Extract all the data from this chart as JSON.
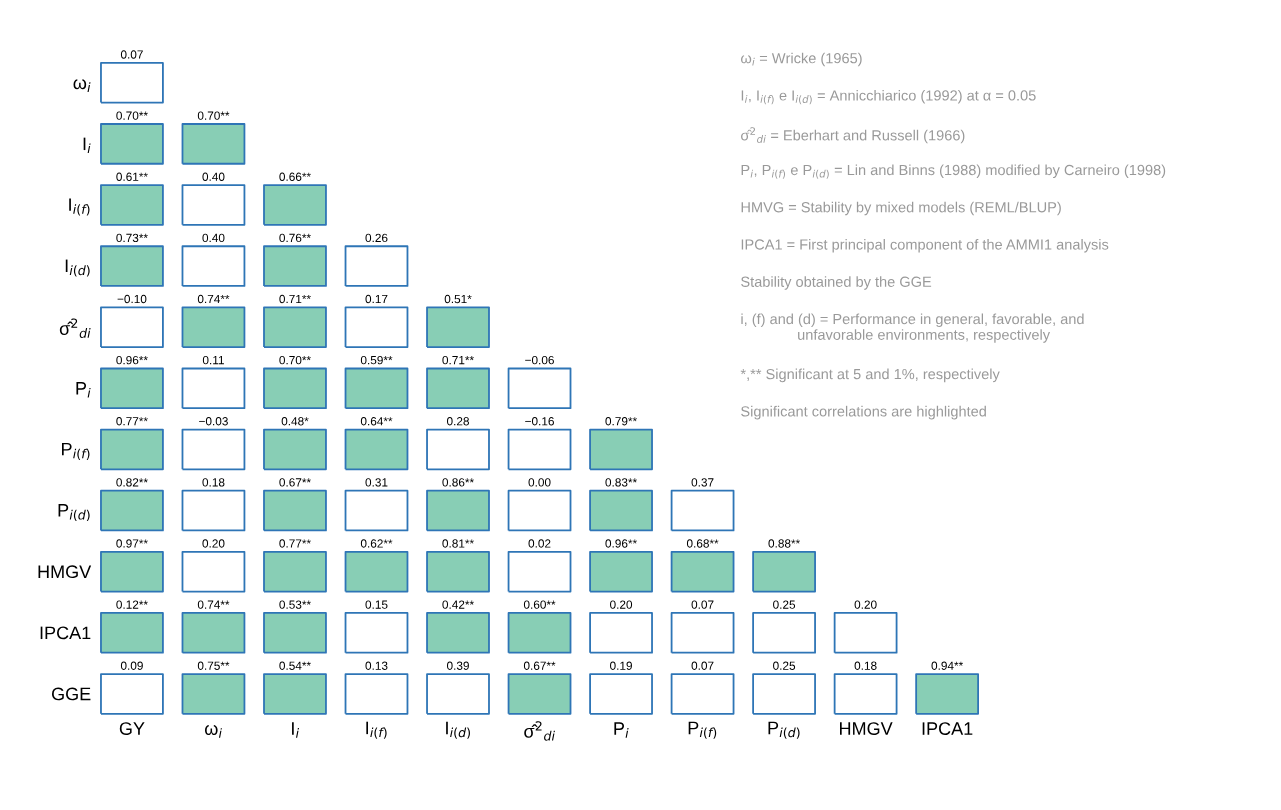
{
  "chart_data": {
    "type": "heatmap",
    "categories": [
      "GY",
      "ω$_{i}$",
      "I$_{i}$",
      "I$_{i(f)}$",
      "I$_{i(d)}$",
      "σ̂$^{2}$$_{di}$",
      "P$_{i}$",
      "P$_{i(f)}$",
      "P$_{i(d)}$",
      "HMGV",
      "IPCA1"
    ],
    "y_categories": [
      "ω$_{i}$",
      "I$_{i}$",
      "I$_{i(f)}$",
      "I$_{i(d)}$",
      "σ̂$^{2}$$_{di}$",
      "P$_{i}$",
      "P$_{i(f)}$",
      "P$_{i(d)}$",
      "HMGV",
      "IPCA1",
      "GGE"
    ],
    "cells": [
      [
        0.07,
        null,
        null,
        null,
        null,
        null,
        null,
        null,
        null,
        null,
        null
      ],
      [
        0.7,
        0.7,
        null,
        null,
        null,
        null,
        null,
        null,
        null,
        null,
        null
      ],
      [
        0.61,
        0.4,
        0.66,
        null,
        null,
        null,
        null,
        null,
        null,
        null,
        null
      ],
      [
        0.73,
        0.4,
        0.76,
        0.26,
        null,
        null,
        null,
        null,
        null,
        null,
        null
      ],
      [
        -0.1,
        0.74,
        0.71,
        0.17,
        0.51,
        null,
        null,
        null,
        null,
        null,
        null
      ],
      [
        0.96,
        0.11,
        0.7,
        0.59,
        0.71,
        -0.06,
        null,
        null,
        null,
        null,
        null
      ],
      [
        0.77,
        -0.03,
        0.48,
        0.64,
        0.28,
        -0.16,
        0.79,
        null,
        null,
        null,
        null
      ],
      [
        0.82,
        0.18,
        0.67,
        0.31,
        0.86,
        0.0,
        0.83,
        0.37,
        null,
        null,
        null
      ],
      [
        0.97,
        0.2,
        0.77,
        0.62,
        0.81,
        0.02,
        0.96,
        0.68,
        0.88,
        null,
        null
      ],
      [
        0.12,
        0.74,
        0.53,
        0.15,
        0.42,
        0.6,
        0.2,
        0.07,
        0.25,
        0.2,
        null
      ],
      [
        0.09,
        0.75,
        0.54,
        0.13,
        0.39,
        0.67,
        0.19,
        0.07,
        0.25,
        0.18,
        0.94
      ]
    ],
    "cell_labels": [
      [
        "0.07",
        null,
        null,
        null,
        null,
        null,
        null,
        null,
        null,
        null,
        null
      ],
      [
        "0.70**",
        "0.70**",
        null,
        null,
        null,
        null,
        null,
        null,
        null,
        null,
        null
      ],
      [
        "0.61**",
        "0.40",
        "0.66**",
        null,
        null,
        null,
        null,
        null,
        null,
        null,
        null
      ],
      [
        "0.73**",
        "0.40",
        "0.76**",
        "0.26",
        null,
        null,
        null,
        null,
        null,
        null,
        null
      ],
      [
        "−0.10",
        "0.74**",
        "0.71**",
        "0.17",
        "0.51*",
        null,
        null,
        null,
        null,
        null,
        null
      ],
      [
        "0.96**",
        "0.11",
        "0.70**",
        "0.59**",
        "0.71**",
        "−0.06",
        null,
        null,
        null,
        null,
        null
      ],
      [
        "0.77**",
        "−0.03",
        "0.48*",
        "0.64**",
        "0.28",
        "−0.16",
        "0.79**",
        null,
        null,
        null,
        null
      ],
      [
        "0.82**",
        "0.18",
        "0.67**",
        "0.31",
        "0.86**",
        "0.00",
        "0.83**",
        "0.37",
        null,
        null,
        null
      ],
      [
        "0.97**",
        "0.20",
        "0.77**",
        "0.62**",
        "0.81**",
        "0.02",
        "0.96**",
        "0.68**",
        "0.88**",
        null,
        null
      ],
      [
        "0.12**",
        "0.74**",
        "0.53**",
        "0.15",
        "0.42**",
        "0.60**",
        "0.20",
        "0.07",
        "0.25",
        "0.20",
        null
      ],
      [
        "0.09",
        "0.75**",
        "0.54**",
        "0.13",
        "0.39",
        "0.67**",
        "0.19",
        "0.07",
        "0.25",
        "0.18",
        "0.94**"
      ]
    ],
    "colors": [
      "#ffffff",
      "#88ceb5"
    ],
    "annotations": [
      "ω$_{i}$ = Wricke (1965)",
      "I$_{i}$, I$_{i(f)}$ e I$_{i(d)}$ = Annicchiarico (1992) at α = 0.05",
      "σ̂$^{2}$$_{di}$ = Eberhart and Russell (1966)",
      "P$_{i}$, P$_{i(f)}$ e P$_{i(d)}$ = Lin and Binns (1988) modified by Carneiro (1998)",
      "HMVG = Stability by mixed models (REML/BLUP)",
      "IPCA1 = First principal component of the AMMI1 analysis",
      "Stability obtained by the GGE",
      "i, (f) and (d) = Performance in general, favorable, and\n              unfavorable environments, respectively",
      "*,** Significant at 5 and 1%, respectively",
      "Significant correlations are highlighted"
    ]
  }
}
